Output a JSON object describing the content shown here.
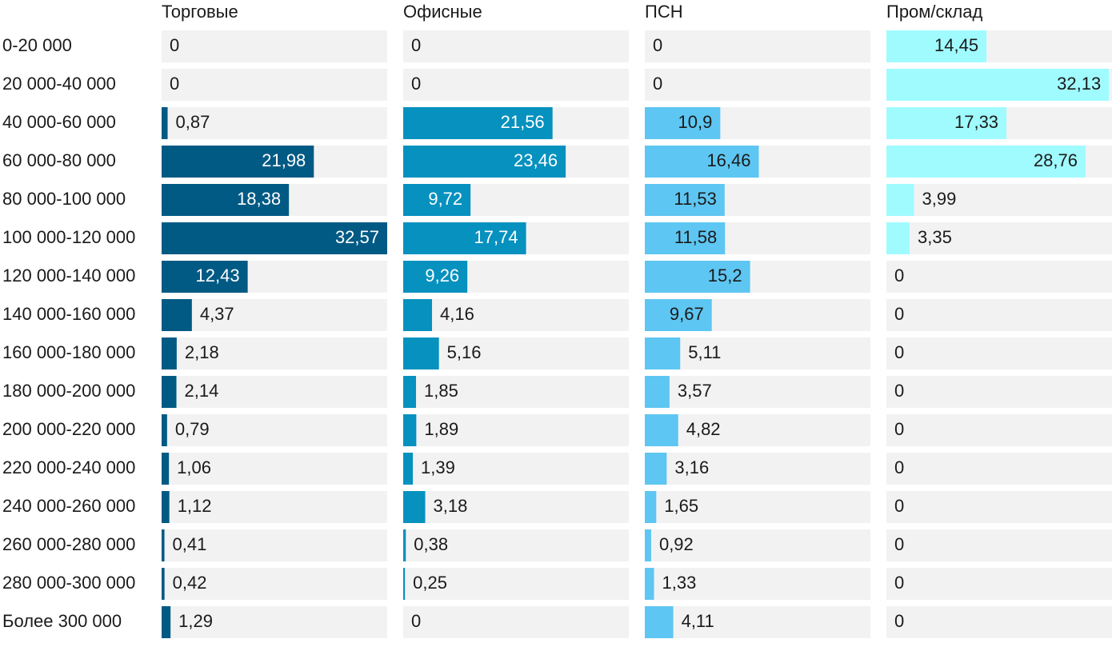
{
  "chart_data": {
    "type": "bar",
    "orientation": "horizontal",
    "layout": "small-multiples",
    "categories": [
      "0-20 000",
      "20 000-40 000",
      "40 000-60 000",
      "60 000-80 000",
      "80 000-100 000",
      "100 000-120 000",
      "120 000-140 000",
      "140 000-160 000",
      "160 000-180 000",
      "180 000-200 000",
      "200 000-220 000",
      "220 000-240 000",
      "240 000-260 000",
      "260 000-280 000",
      "280 000-300 000",
      "Более 300 000"
    ],
    "series": [
      {
        "name": "Торговые",
        "color": "#015a84",
        "values": [
          0,
          0,
          0.87,
          21.98,
          18.38,
          32.57,
          12.43,
          4.37,
          2.18,
          2.14,
          0.79,
          1.06,
          1.12,
          0.41,
          0.42,
          1.29
        ],
        "labels": [
          "0",
          "0",
          "0,87",
          "21,98",
          "18,38",
          "32,57",
          "12,43",
          "4,37",
          "2,18",
          "2,14",
          "0,79",
          "1,06",
          "1,12",
          "0,41",
          "0,42",
          "1,29"
        ]
      },
      {
        "name": "Офисные",
        "color": "#0691bf",
        "values": [
          0,
          0,
          21.56,
          23.46,
          9.72,
          17.74,
          9.26,
          4.16,
          5.16,
          1.85,
          1.89,
          1.39,
          3.18,
          0.38,
          0.25,
          0
        ],
        "labels": [
          "0",
          "0",
          "21,56",
          "23,46",
          "9,72",
          "17,74",
          "9,26",
          "4,16",
          "5,16",
          "1,85",
          "1,89",
          "1,39",
          "3,18",
          "0,38",
          "0,25",
          "0"
        ]
      },
      {
        "name": "ПСН",
        "color": "#5ec6f2",
        "values": [
          0,
          0,
          10.9,
          16.46,
          11.53,
          11.58,
          15.2,
          9.67,
          5.11,
          3.57,
          4.82,
          3.16,
          1.65,
          0.92,
          1.33,
          4.11
        ],
        "labels": [
          "0",
          "0",
          "10,9",
          "16,46",
          "11,53",
          "11,58",
          "15,2",
          "9,67",
          "5,11",
          "3,57",
          "4,82",
          "3,16",
          "1,65",
          "0,92",
          "1,33",
          "4,11"
        ]
      },
      {
        "name": "Пром/склад",
        "color": "#a0fbff",
        "values": [
          14.45,
          32.13,
          17.33,
          28.76,
          3.99,
          3.35,
          0,
          0,
          0,
          0,
          0,
          0,
          0,
          0,
          0,
          0
        ],
        "labels": [
          "14,45",
          "32,13",
          "17,33",
          "28,76",
          "3,99",
          "3,35",
          "0",
          "0",
          "0",
          "0",
          "0",
          "0",
          "0",
          "0",
          "0",
          "0"
        ]
      }
    ],
    "xlim": [
      0,
      32.57
    ],
    "background_track_color": "#f2f2f2",
    "inside_label_colors": [
      "#ffffff",
      "#ffffff",
      "#1a1a1a",
      "#1a1a1a"
    ],
    "outside_label_color": "#1a1a1a"
  }
}
